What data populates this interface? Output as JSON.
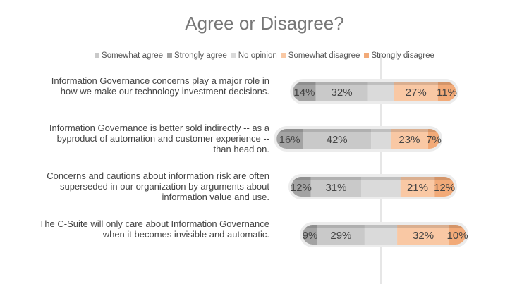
{
  "chart_data": {
    "type": "bar",
    "title": "Agree or Disagree?",
    "legend_order": [
      "Somewhat agree",
      "Strongly agree",
      "No opinion",
      "Somewhat disagree",
      "Strongly disagree"
    ],
    "legend_position": "top",
    "colors": {
      "Strongly agree": "#a3a3a3",
      "Somewhat agree": "#c9c9c9",
      "No opinion": "#dadada",
      "Somewhat disagree": "#f9c8a4",
      "Strongly disagree": "#f2aa78"
    },
    "categories": [
      "Information Governance concerns play a major role in how we make our technology investment decisions.",
      "Information Governance is better sold indirectly -- as a byproduct of automation and customer experience -- than head on.",
      "Concerns and cautions about information risk are often superseded in our organization by arguments about information value and use.",
      "The C-Suite will only care about Information Governance when it becomes invisible and automatic."
    ],
    "series": [
      {
        "name": "Strongly agree",
        "values": [
          14,
          16,
          12,
          9
        ],
        "labels": [
          "14%",
          "16%",
          "12%",
          "9%"
        ]
      },
      {
        "name": "Somewhat agree",
        "values": [
          32,
          42,
          31,
          29
        ],
        "labels": [
          "32%",
          "42%",
          "31%",
          "29%"
        ]
      },
      {
        "name": "No opinion",
        "values": [
          16,
          12,
          24,
          20
        ],
        "labels": [
          "",
          "",
          "",
          ""
        ]
      },
      {
        "name": "Somewhat disagree",
        "values": [
          27,
          23,
          21,
          32
        ],
        "labels": [
          "27%",
          "23%",
          "21%",
          "32%"
        ]
      },
      {
        "name": "Strongly disagree",
        "values": [
          11,
          7,
          12,
          10
        ],
        "labels": [
          "11%",
          "7%",
          "12%",
          "10%"
        ]
      }
    ]
  }
}
